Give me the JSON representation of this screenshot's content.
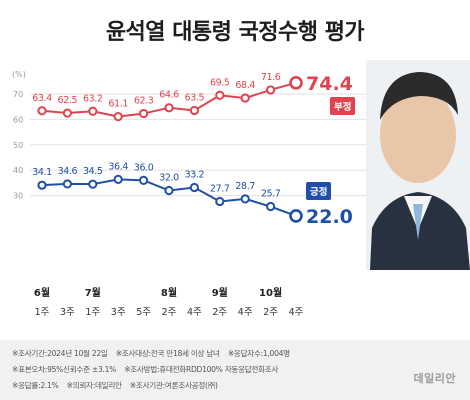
{
  "title": "윤석열 대통령 국정수행 평가",
  "chart_data": {
    "type": "line",
    "y_unit": "(%)",
    "yticks": [
      70,
      60,
      50,
      40,
      30
    ],
    "ylim": [
      22,
      76
    ],
    "x_weeks": [
      "1주",
      "3주",
      "1주",
      "3주",
      "5주",
      "2주",
      "4주",
      "2주",
      "4주",
      "2주",
      "4주"
    ],
    "x_months": [
      {
        "label": "6월",
        "index": 0
      },
      {
        "label": "7월",
        "index": 2
      },
      {
        "label": "8월",
        "index": 5
      },
      {
        "label": "9월",
        "index": 7
      },
      {
        "label": "10월",
        "index": 9
      }
    ],
    "series": [
      {
        "name": "부정",
        "color": "#e0434e",
        "values": [
          63.4,
          62.5,
          63.2,
          61.1,
          62.3,
          64.6,
          63.5,
          69.5,
          68.4,
          71.6,
          74.4
        ],
        "labels": [
          "63.4",
          "62.5",
          "63.2",
          "61.1",
          "62.3",
          "64.6",
          "63.5",
          "69.5",
          "68.4",
          "71.6",
          "74.4"
        ]
      },
      {
        "name": "긍정",
        "color": "#1f4fa8",
        "values": [
          34.1,
          34.6,
          34.5,
          36.4,
          36.0,
          32.0,
          33.2,
          27.7,
          28.7,
          25.7,
          22.0
        ],
        "labels": [
          "34.1",
          "34.6",
          "34.5",
          "36.4",
          "36.0",
          "32.0",
          "33.2",
          "27.7",
          "28.7",
          "25.7",
          "22.0"
        ]
      }
    ]
  },
  "photo": {
    "alt": "portrait"
  },
  "footnotes": {
    "line1": [
      "※조사기간:2024년 10월 22일",
      "※조사대상:전국 만18세 이상 남녀",
      "※응답자수:1,004명"
    ],
    "line2": [
      "※표본오차:95%신뢰수준 ±3.1%",
      "※조사방법:휴대전화RDD100% 자동응답전화조사"
    ],
    "line3": [
      "※응답률:2.1%",
      "※의뢰자:데일리안",
      "※조사기관:여론조사공정(㈜)"
    ],
    "logo": "데일리안"
  }
}
